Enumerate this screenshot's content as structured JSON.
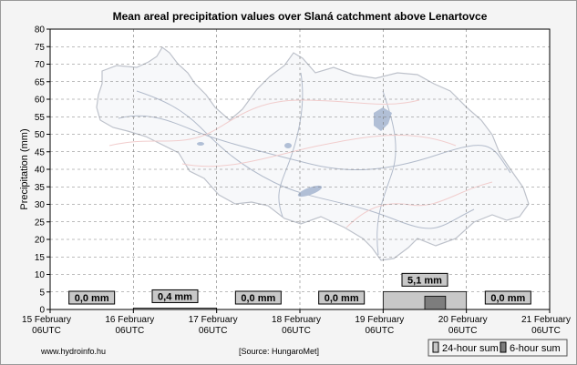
{
  "chart_data": {
    "type": "bar",
    "title": "Mean areal precipitation values over Slaná catchment above Lenartovce",
    "ylabel": "Precipitation (mm)",
    "xlabel": "",
    "ylim": [
      0,
      80
    ],
    "yticks": [
      0,
      5,
      10,
      15,
      20,
      25,
      30,
      35,
      40,
      45,
      50,
      55,
      60,
      65,
      70,
      75,
      80
    ],
    "x_ticks": [
      {
        "line1": "15 February",
        "line2": "06UTC"
      },
      {
        "line1": "16 February",
        "line2": "06UTC"
      },
      {
        "line1": "17 February",
        "line2": "06UTC"
      },
      {
        "line1": "18 February",
        "line2": "06UTC"
      },
      {
        "line1": "19 February",
        "line2": "06UTC"
      },
      {
        "line1": "20 February",
        "line2": "06UTC"
      },
      {
        "line1": "21 February",
        "line2": "06UTC"
      }
    ],
    "series": [
      {
        "name": "24-hour sum",
        "values": [
          0.0,
          0.4,
          0.0,
          0.0,
          5.1,
          0.0
        ],
        "labels": [
          "0,0 mm",
          "0,4 mm",
          "0,0 mm",
          "0,0 mm",
          "5,1 mm",
          "0,0 mm"
        ]
      },
      {
        "name": "6-hour sum",
        "values": [
          0,
          0,
          0,
          0,
          0,
          0,
          0,
          0,
          0,
          0,
          0,
          0,
          0,
          0,
          0,
          0,
          0,
          0,
          3.8,
          0,
          0,
          0,
          0,
          0
        ]
      }
    ],
    "grid": true,
    "legend_position": "bottom-right"
  },
  "footer": {
    "website": "www.hydroinfo.hu",
    "source": "[Source: HungaroMet]"
  },
  "colors": {
    "background": "#f4f4f4",
    "plot_background": "#ffffff",
    "bar_24h": "#c8c8c8",
    "bar_6h": "#7d7d7d",
    "label_box": "#c8c8c8",
    "map_line": "#b7bcc6",
    "river": "#aab4c6",
    "road": "#f0c8c8",
    "lake": "#a9b9d2"
  }
}
